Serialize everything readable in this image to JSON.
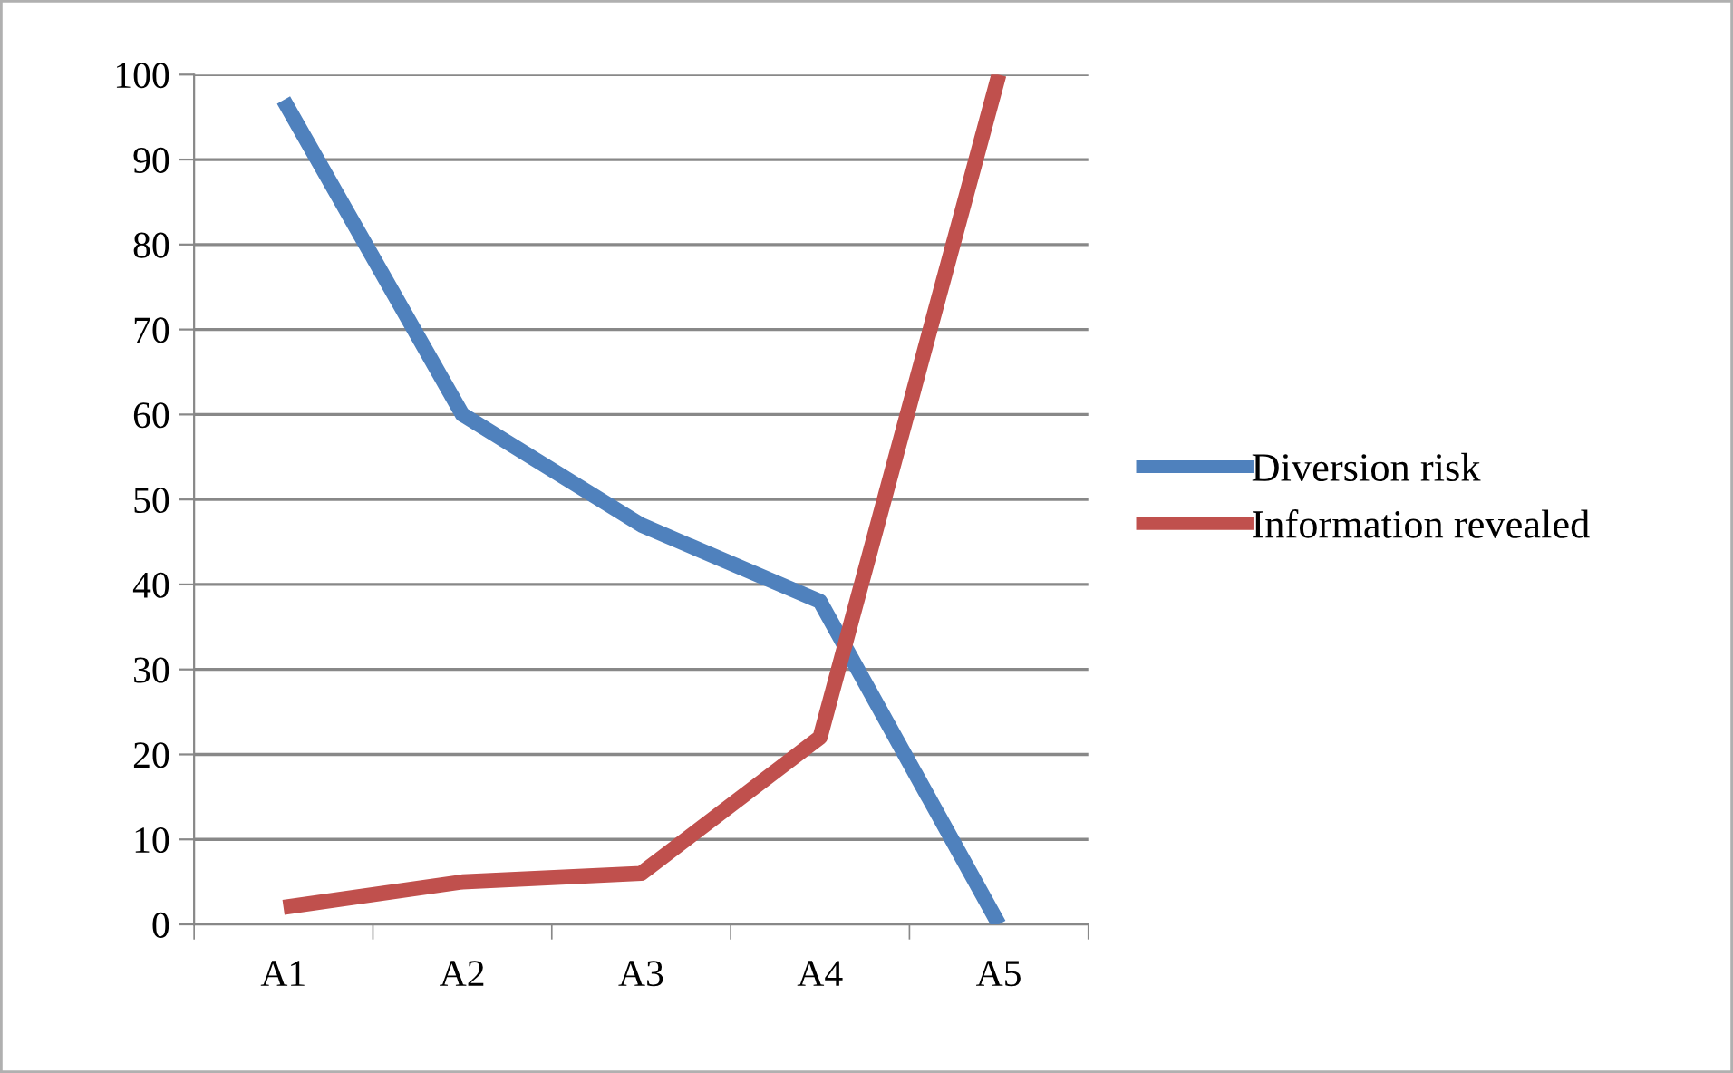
{
  "chart_data": {
    "type": "line",
    "categories": [
      "A1",
      "A2",
      "A3",
      "A4",
      "A5"
    ],
    "series": [
      {
        "name": "Diversion risk",
        "color": "#4f81bd",
        "values": [
          97,
          60,
          47,
          38,
          0
        ]
      },
      {
        "name": "Information revealed",
        "color": "#c0504d",
        "values": [
          2,
          5,
          6,
          22,
          100
        ]
      }
    ],
    "ylim": [
      0,
      100
    ],
    "yticks": [
      0,
      10,
      20,
      30,
      40,
      50,
      60,
      70,
      80,
      90,
      100
    ],
    "grid": "y",
    "legend": "right",
    "marker": "none",
    "line_style": "solid"
  }
}
